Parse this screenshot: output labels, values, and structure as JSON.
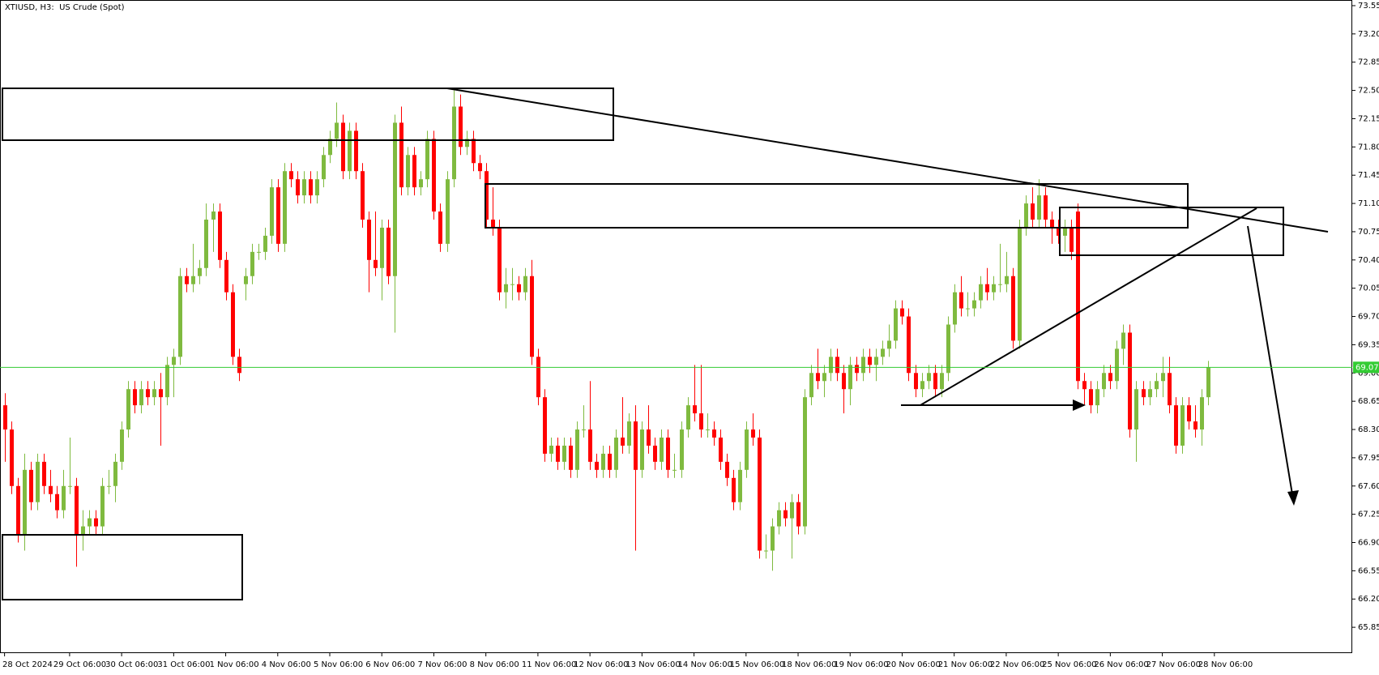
{
  "chart_data": {
    "type": "candlestick",
    "title": "XTIUSD, H3:  US Crude (Spot)",
    "up_color": "#7fba3f",
    "down_color": "#ff0000",
    "last_price": 69.07,
    "last_price_color": "#33cc33",
    "ylim": [
      65.53,
      73.62
    ],
    "xlim": [
      -0.7,
      207.2
    ],
    "yticks": [
      73.55,
      {
        "value": 73.2,
        "label": "73.20"
      },
      72.85,
      {
        "value": 72.5,
        "label": "72.50"
      },
      72.15,
      {
        "value": 71.8,
        "label": "71.80"
      },
      71.45,
      {
        "value": 71.1,
        "label": "71.10"
      },
      70.75,
      {
        "value": 70.4,
        "label": "70.40"
      },
      70.05,
      {
        "value": 69.7,
        "label": "69.70"
      },
      69.35,
      {
        "value": 69.0,
        "label": "69.00"
      },
      68.65,
      {
        "value": 68.3,
        "label": "68.30"
      },
      67.95,
      {
        "value": 67.6,
        "label": "67.60"
      },
      67.25,
      {
        "value": 66.9,
        "label": "66.90"
      },
      66.55,
      {
        "value": 66.2,
        "label": "66.20"
      },
      65.85
    ],
    "xticks": [
      {
        "value": 0,
        "label": "28 Oct 2024"
      },
      {
        "value": 10,
        "label": "29 Oct 06:00"
      },
      {
        "value": 18,
        "label": "30 Oct 06:00"
      },
      {
        "value": 26,
        "label": "31 Oct 06:00"
      },
      {
        "value": 34,
        "label": "1 Nov 06:00"
      },
      {
        "value": 42,
        "label": "4 Nov 06:00"
      },
      {
        "value": 50,
        "label": "5 Nov 06:00"
      },
      {
        "value": 58,
        "label": "6 Nov 06:00"
      },
      {
        "value": 66,
        "label": "7 Nov 06:00"
      },
      {
        "value": 74,
        "label": "8 Nov 06:00"
      },
      {
        "value": 82,
        "label": "11 Nov 06:00"
      },
      {
        "value": 90,
        "label": "12 Nov 06:00"
      },
      {
        "value": 98,
        "label": "13 Nov 06:00"
      },
      {
        "value": 106,
        "label": "14 Nov 06:00"
      },
      {
        "value": 114,
        "label": "15 Nov 06:00"
      },
      {
        "value": 122,
        "label": "18 Nov 06:00"
      },
      {
        "value": 130,
        "label": "19 Nov 06:00"
      },
      {
        "value": 138,
        "label": "20 Nov 06:00"
      },
      {
        "value": 146,
        "label": "21 Nov 06:00"
      },
      {
        "value": 154,
        "label": "22 Nov 06:00"
      },
      {
        "value": 162,
        "label": "25 Nov 06:00"
      },
      {
        "value": 170,
        "label": "26 Nov 06:00"
      },
      {
        "value": 178,
        "label": "27 Nov 06:00"
      },
      {
        "value": 186,
        "label": "28 Nov 06:00"
      }
    ],
    "candles": [
      [
        68.6,
        68.75,
        67.9,
        68.3
      ],
      [
        68.3,
        68.4,
        67.5,
        67.6
      ],
      [
        67.6,
        67.7,
        66.9,
        67.0
      ],
      [
        67.0,
        68.0,
        66.8,
        67.8
      ],
      [
        67.8,
        67.9,
        67.3,
        67.4
      ],
      [
        67.4,
        68.0,
        67.3,
        67.9
      ],
      [
        67.9,
        68.0,
        67.5,
        67.6
      ],
      [
        67.6,
        67.8,
        67.4,
        67.5
      ],
      [
        67.5,
        67.6,
        67.2,
        67.3
      ],
      [
        67.3,
        67.8,
        67.2,
        67.6
      ],
      [
        67.6,
        68.2,
        67.5,
        67.6
      ],
      [
        67.6,
        67.7,
        66.6,
        67.0
      ],
      [
        67.0,
        67.3,
        66.8,
        67.1
      ],
      [
        67.1,
        67.3,
        67.0,
        67.2
      ],
      [
        67.2,
        67.3,
        67.0,
        67.1
      ],
      [
        67.1,
        67.7,
        67.0,
        67.6
      ],
      [
        67.6,
        67.8,
        67.5,
        67.6
      ],
      [
        67.6,
        68.0,
        67.4,
        67.9
      ],
      [
        67.9,
        68.4,
        67.8,
        68.3
      ],
      [
        68.3,
        68.9,
        68.2,
        68.8
      ],
      [
        68.8,
        68.9,
        68.5,
        68.6
      ],
      [
        68.6,
        68.9,
        68.5,
        68.8
      ],
      [
        68.8,
        68.9,
        68.6,
        68.7
      ],
      [
        68.7,
        68.9,
        68.6,
        68.8
      ],
      [
        68.8,
        69.0,
        68.1,
        68.7
      ],
      [
        68.7,
        69.2,
        68.6,
        69.1
      ],
      [
        69.1,
        69.3,
        68.7,
        69.2
      ],
      [
        69.2,
        70.3,
        69.1,
        70.2
      ],
      [
        70.2,
        70.3,
        70.0,
        70.1
      ],
      [
        70.1,
        70.6,
        70.0,
        70.2
      ],
      [
        70.2,
        70.4,
        70.1,
        70.3
      ],
      [
        70.3,
        71.1,
        70.2,
        70.9
      ],
      [
        70.9,
        71.1,
        70.5,
        71.0
      ],
      [
        71.0,
        71.1,
        70.3,
        70.4
      ],
      [
        70.4,
        70.5,
        69.9,
        70.0
      ],
      [
        70.0,
        70.1,
        69.1,
        69.2
      ],
      [
        69.2,
        69.3,
        68.9,
        69.0
      ],
      [
        70.1,
        70.3,
        69.9,
        70.2
      ],
      [
        70.2,
        70.6,
        70.1,
        70.5
      ],
      [
        70.5,
        70.6,
        70.4,
        70.5
      ],
      [
        70.5,
        70.8,
        70.4,
        70.7
      ],
      [
        70.7,
        71.4,
        70.6,
        71.3
      ],
      [
        71.3,
        71.4,
        70.5,
        70.6
      ],
      [
        70.6,
        71.6,
        70.5,
        71.5
      ],
      [
        71.5,
        71.6,
        71.3,
        71.4
      ],
      [
        71.4,
        71.5,
        71.1,
        71.2
      ],
      [
        71.2,
        71.5,
        71.1,
        71.4
      ],
      [
        71.4,
        71.5,
        71.1,
        71.2
      ],
      [
        71.2,
        71.5,
        71.1,
        71.4
      ],
      [
        71.4,
        71.8,
        71.3,
        71.7
      ],
      [
        71.7,
        72.0,
        71.6,
        71.9
      ],
      [
        71.9,
        72.35,
        71.8,
        72.1
      ],
      [
        72.1,
        72.2,
        71.4,
        71.5
      ],
      [
        71.5,
        72.1,
        71.4,
        72.0
      ],
      [
        72.0,
        72.1,
        71.4,
        71.5
      ],
      [
        71.5,
        71.6,
        70.8,
        70.9
      ],
      [
        70.9,
        71.0,
        70.0,
        70.4
      ],
      [
        70.4,
        71.0,
        70.2,
        70.3
      ],
      [
        70.3,
        70.9,
        69.9,
        70.8
      ],
      [
        70.8,
        70.9,
        70.1,
        70.2
      ],
      [
        70.2,
        72.2,
        69.5,
        72.1
      ],
      [
        72.1,
        72.3,
        71.2,
        71.3
      ],
      [
        71.3,
        71.8,
        71.2,
        71.7
      ],
      [
        71.7,
        71.8,
        71.2,
        71.3
      ],
      [
        71.3,
        71.5,
        71.2,
        71.4
      ],
      [
        71.4,
        72.0,
        71.3,
        71.9
      ],
      [
        71.9,
        72.0,
        70.9,
        71.0
      ],
      [
        71.0,
        71.1,
        70.5,
        70.6
      ],
      [
        70.6,
        71.5,
        70.5,
        71.4
      ],
      [
        71.4,
        72.5,
        71.3,
        72.3
      ],
      [
        72.3,
        72.45,
        71.7,
        71.8
      ],
      [
        71.8,
        72.0,
        71.7,
        71.9
      ],
      [
        71.9,
        72.0,
        71.5,
        71.6
      ],
      [
        71.6,
        71.7,
        71.4,
        71.5
      ],
      [
        71.5,
        71.6,
        70.8,
        70.9
      ],
      [
        70.9,
        71.3,
        70.7,
        70.8
      ],
      [
        70.8,
        70.9,
        69.9,
        70.0
      ],
      [
        70.0,
        70.3,
        69.8,
        70.1
      ],
      [
        70.1,
        70.3,
        69.9,
        70.1
      ],
      [
        70.1,
        70.2,
        69.9,
        70.0
      ],
      [
        70.0,
        70.3,
        69.9,
        70.2
      ],
      [
        70.2,
        70.4,
        69.1,
        69.2
      ],
      [
        69.2,
        69.3,
        68.6,
        68.7
      ],
      [
        68.7,
        68.8,
        67.9,
        68.0
      ],
      [
        68.0,
        68.2,
        67.9,
        68.1
      ],
      [
        68.1,
        68.2,
        67.8,
        67.9
      ],
      [
        67.9,
        68.2,
        67.8,
        68.1
      ],
      [
        68.1,
        68.2,
        67.7,
        67.8
      ],
      [
        67.8,
        68.4,
        67.7,
        68.3
      ],
      [
        68.3,
        68.6,
        68.2,
        68.3
      ],
      [
        68.3,
        68.9,
        67.8,
        67.9
      ],
      [
        67.9,
        68.0,
        67.7,
        67.8
      ],
      [
        67.8,
        68.1,
        67.7,
        68.0
      ],
      [
        68.0,
        68.1,
        67.7,
        67.8
      ],
      [
        67.8,
        68.3,
        67.7,
        68.2
      ],
      [
        68.2,
        68.7,
        68.0,
        68.1
      ],
      [
        68.1,
        68.5,
        68.0,
        68.4
      ],
      [
        68.4,
        68.6,
        66.8,
        67.8
      ],
      [
        67.8,
        68.4,
        67.7,
        68.3
      ],
      [
        68.3,
        68.6,
        68.0,
        68.1
      ],
      [
        68.1,
        68.2,
        67.8,
        67.9
      ],
      [
        67.9,
        68.3,
        67.8,
        68.2
      ],
      [
        68.2,
        68.3,
        67.7,
        67.8
      ],
      [
        67.8,
        68.0,
        67.7,
        67.8
      ],
      [
        67.8,
        68.4,
        67.7,
        68.3
      ],
      [
        68.3,
        68.7,
        68.2,
        68.6
      ],
      [
        68.6,
        69.1,
        68.4,
        68.5
      ],
      [
        68.5,
        69.1,
        68.2,
        68.3
      ],
      [
        68.3,
        68.5,
        68.2,
        68.3
      ],
      [
        68.3,
        68.4,
        68.1,
        68.2
      ],
      [
        68.2,
        68.3,
        67.8,
        67.9
      ],
      [
        67.9,
        68.0,
        67.6,
        67.7
      ],
      [
        67.7,
        67.8,
        67.3,
        67.4
      ],
      [
        67.4,
        67.9,
        67.3,
        67.8
      ],
      [
        67.8,
        68.4,
        67.7,
        68.3
      ],
      [
        68.3,
        68.5,
        68.1,
        68.2
      ],
      [
        68.2,
        68.3,
        66.7,
        66.8
      ],
      [
        66.8,
        67.0,
        66.7,
        66.8
      ],
      [
        66.8,
        67.2,
        66.55,
        67.1
      ],
      [
        67.1,
        67.4,
        67.0,
        67.3
      ],
      [
        67.3,
        67.4,
        67.1,
        67.2
      ],
      [
        67.2,
        67.5,
        66.7,
        67.4
      ],
      [
        67.4,
        67.5,
        67.0,
        67.1
      ],
      [
        67.1,
        68.8,
        67.0,
        68.7
      ],
      [
        68.7,
        69.1,
        68.6,
        69.0
      ],
      [
        69.0,
        69.3,
        68.8,
        68.9
      ],
      [
        68.9,
        69.1,
        68.7,
        69.0
      ],
      [
        69.0,
        69.3,
        68.9,
        69.2
      ],
      [
        69.2,
        69.3,
        68.9,
        69.0
      ],
      [
        69.0,
        69.1,
        68.5,
        68.8
      ],
      [
        68.8,
        69.2,
        68.6,
        69.1
      ],
      [
        69.1,
        69.2,
        68.9,
        69.0
      ],
      [
        69.0,
        69.3,
        68.9,
        69.2
      ],
      [
        69.2,
        69.3,
        69.0,
        69.1
      ],
      [
        69.1,
        69.3,
        68.9,
        69.2
      ],
      [
        69.2,
        69.4,
        69.1,
        69.3
      ],
      [
        69.3,
        69.6,
        69.2,
        69.4
      ],
      [
        69.4,
        69.9,
        69.3,
        69.8
      ],
      [
        69.8,
        69.9,
        69.6,
        69.7
      ],
      [
        69.7,
        69.8,
        68.9,
        69.0
      ],
      [
        69.0,
        69.1,
        68.7,
        68.8
      ],
      [
        68.8,
        69.0,
        68.7,
        68.9
      ],
      [
        68.9,
        69.1,
        68.8,
        69.0
      ],
      [
        69.0,
        69.1,
        68.7,
        68.8
      ],
      [
        68.8,
        69.1,
        68.7,
        69.0
      ],
      [
        69.0,
        69.7,
        68.9,
        69.6
      ],
      [
        69.6,
        70.1,
        69.5,
        70.0
      ],
      [
        70.0,
        70.2,
        69.7,
        69.8
      ],
      [
        69.8,
        70.0,
        69.7,
        69.8
      ],
      [
        69.8,
        70.0,
        69.7,
        69.9
      ],
      [
        69.9,
        70.2,
        69.8,
        70.1
      ],
      [
        70.1,
        70.3,
        69.9,
        70.0
      ],
      [
        70.0,
        70.2,
        69.9,
        70.1
      ],
      [
        70.1,
        70.6,
        70.0,
        70.1
      ],
      [
        70.1,
        70.5,
        70.0,
        70.2
      ],
      [
        70.2,
        70.3,
        69.3,
        69.4
      ],
      [
        69.4,
        70.9,
        69.3,
        70.8
      ],
      [
        70.8,
        71.2,
        70.7,
        71.1
      ],
      [
        71.1,
        71.3,
        70.8,
        70.9
      ],
      [
        70.9,
        71.4,
        70.8,
        71.2
      ],
      [
        71.2,
        71.3,
        70.8,
        70.9
      ],
      [
        70.9,
        71.0,
        70.6,
        70.8
      ],
      [
        70.8,
        70.9,
        70.6,
        70.7
      ],
      [
        70.7,
        70.9,
        70.5,
        70.8
      ],
      [
        70.8,
        70.9,
        70.4,
        70.5
      ],
      [
        71.0,
        71.1,
        68.8,
        68.9
      ],
      [
        68.9,
        69.0,
        68.6,
        68.8
      ],
      [
        68.8,
        68.9,
        68.5,
        68.6
      ],
      [
        68.6,
        68.9,
        68.5,
        68.8
      ],
      [
        68.8,
        69.1,
        68.7,
        69.0
      ],
      [
        69.0,
        69.1,
        68.8,
        68.9
      ],
      [
        68.9,
        69.4,
        68.8,
        69.3
      ],
      [
        69.3,
        69.6,
        69.1,
        69.5
      ],
      [
        69.5,
        69.6,
        68.2,
        68.3
      ],
      [
        68.3,
        68.9,
        67.9,
        68.8
      ],
      [
        68.8,
        68.9,
        68.6,
        68.7
      ],
      [
        68.7,
        68.9,
        68.6,
        68.8
      ],
      [
        68.8,
        69.0,
        68.7,
        68.9
      ],
      [
        68.9,
        69.2,
        68.7,
        69.0
      ],
      [
        69.0,
        69.2,
        68.5,
        68.6
      ],
      [
        68.6,
        68.7,
        68.0,
        68.1
      ],
      [
        68.1,
        68.7,
        68.0,
        68.6
      ],
      [
        68.6,
        68.7,
        68.3,
        68.4
      ],
      [
        68.4,
        68.6,
        68.2,
        68.3
      ],
      [
        68.3,
        68.8,
        68.1,
        68.7
      ],
      [
        68.7,
        69.15,
        68.6,
        69.07
      ]
    ]
  }
}
